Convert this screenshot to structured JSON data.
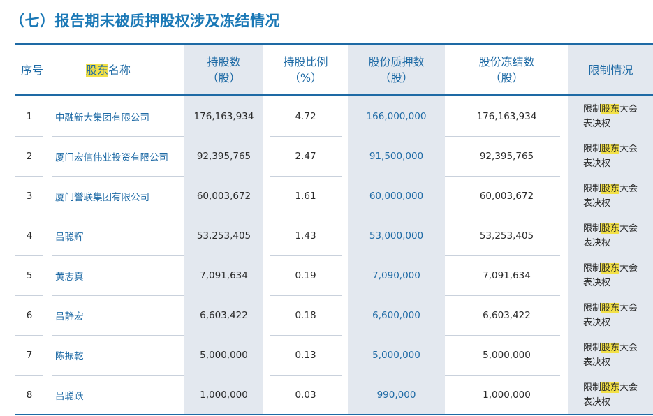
{
  "title": "（七）报告期末被质押股权涉及冻结情况",
  "headers": {
    "seq": "序号",
    "holder_hl": "股东",
    "holder_rest": "名称",
    "shares_l1": "持股数",
    "shares_l2": "（股）",
    "ratio_l1": "持股比例",
    "ratio_l2": "（%）",
    "pledged_l1": "股份质押数",
    "pledged_l2": "（股）",
    "frozen_l1": "股份冻结数",
    "frozen_l2": "（股）",
    "restrict": "限制情况"
  },
  "restrict_text": {
    "pre": "限制",
    "hl": "股东",
    "post": "大会",
    "line2": "表决权"
  },
  "rows": [
    {
      "seq": "1",
      "name": "中融新大集团有限公司",
      "shares": "176,163,934",
      "ratio": "4.72",
      "pledged": "166,000,000",
      "frozen": "176,163,934"
    },
    {
      "seq": "2",
      "name": "厦门宏信伟业投资有限公司",
      "shares": "92,395,765",
      "ratio": "2.47",
      "pledged": "91,500,000",
      "frozen": "92,395,765"
    },
    {
      "seq": "3",
      "name": "厦门誉联集团有限公司",
      "shares": "60,003,672",
      "ratio": "1.61",
      "pledged": "60,000,000",
      "frozen": "60,003,672"
    },
    {
      "seq": "4",
      "name": "吕聪辉",
      "shares": "53,253,405",
      "ratio": "1.43",
      "pledged": "53,000,000",
      "frozen": "53,253,405"
    },
    {
      "seq": "5",
      "name": "黄志真",
      "shares": "7,091,634",
      "ratio": "0.19",
      "pledged": "7,090,000",
      "frozen": "7,091,634"
    },
    {
      "seq": "6",
      "name": "吕静宏",
      "shares": "6,603,422",
      "ratio": "0.18",
      "pledged": "6,600,000",
      "frozen": "6,603,422"
    },
    {
      "seq": "7",
      "name": "陈振乾",
      "shares": "5,000,000",
      "ratio": "0.13",
      "pledged": "5,000,000",
      "frozen": "5,000,000"
    },
    {
      "seq": "8",
      "name": "吕聪跃",
      "shares": "1,000,000",
      "ratio": "0.03",
      "pledged": "990,000",
      "frozen": "1,000,000"
    }
  ]
}
